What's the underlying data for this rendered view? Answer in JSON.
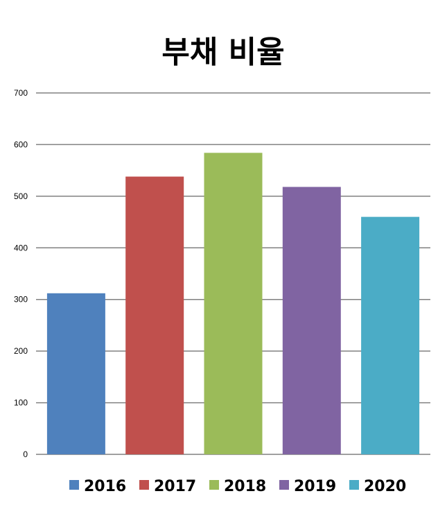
{
  "chart_data": {
    "type": "bar",
    "title": "부채 비율",
    "categories": [
      "2016",
      "2017",
      "2018",
      "2019",
      "2020"
    ],
    "values": [
      312,
      538,
      584,
      518,
      460
    ],
    "colors": [
      "#4F81BD",
      "#C0504D",
      "#9BBB59",
      "#8064A2",
      "#4BACC6"
    ],
    "yticks": [
      "0",
      "100",
      "200",
      "300",
      "400",
      "500",
      "600",
      "700"
    ],
    "ylim": [
      0,
      700
    ],
    "grid": true,
    "legend": {
      "position": "bottom",
      "entries": [
        "2016",
        "2017",
        "2018",
        "2019",
        "2020"
      ]
    }
  }
}
